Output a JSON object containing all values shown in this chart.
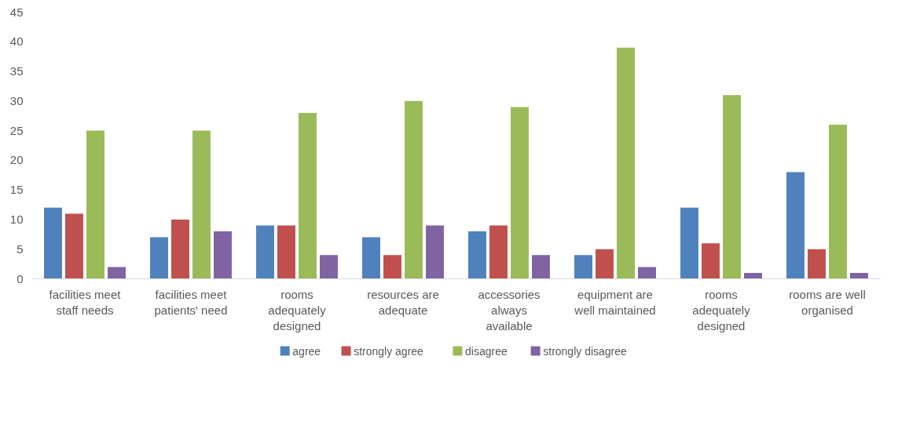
{
  "chart_data": {
    "type": "bar",
    "categories": [
      "facilities meet staff needs",
      "facilities meet patients' need",
      "rooms adequately designed",
      "resources are adequate",
      "accessories always available",
      "equipment are well maintained",
      "rooms adequately designed",
      "rooms are well organised"
    ],
    "series": [
      {
        "name": "agree",
        "color": "#4f81bd",
        "values": [
          12,
          7,
          9,
          7,
          8,
          4,
          12,
          18
        ]
      },
      {
        "name": "strongly agree",
        "color": "#c0504d",
        "values": [
          11,
          10,
          9,
          4,
          9,
          5,
          6,
          5
        ]
      },
      {
        "name": "disagree",
        "color": "#9bbb59",
        "values": [
          25,
          25,
          28,
          30,
          29,
          39,
          31,
          26
        ]
      },
      {
        "name": "strongly disagree",
        "color": "#8064a2",
        "values": [
          2,
          8,
          4,
          9,
          4,
          2,
          1,
          1
        ]
      }
    ],
    "ylim": [
      0,
      45
    ],
    "yticks": [
      0,
      5,
      10,
      15,
      20,
      25,
      30,
      35,
      40,
      45
    ],
    "grid": false,
    "legend": "bottom"
  }
}
